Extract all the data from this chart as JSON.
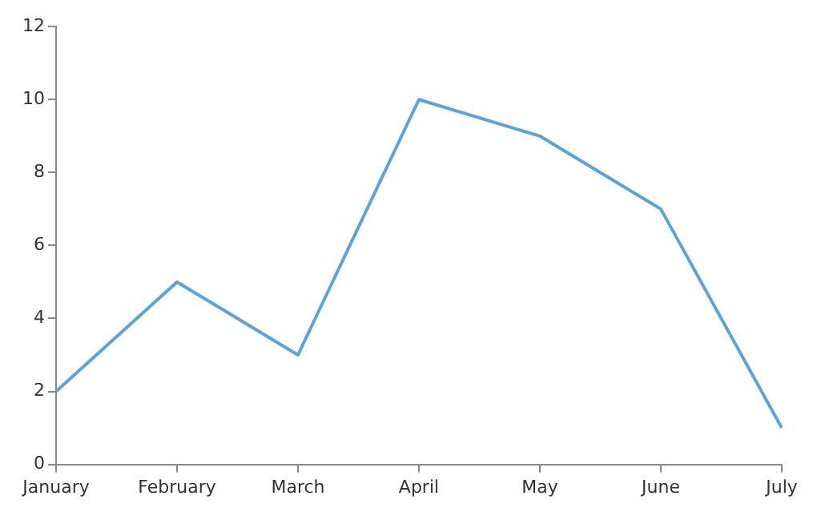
{
  "chart_data": {
    "type": "line",
    "categories": [
      "January",
      "February",
      "March",
      "April",
      "May",
      "June",
      "July"
    ],
    "series": [
      {
        "color": "#5ba3d9",
        "values": [
          2,
          5,
          3,
          10,
          9,
          7,
          1
        ]
      }
    ],
    "ylim": [
      0,
      12
    ],
    "yticks": [
      0,
      2,
      4,
      6,
      8,
      10,
      12
    ],
    "grid": false,
    "legend": false,
    "marker": "none",
    "line_style": "solid"
  }
}
